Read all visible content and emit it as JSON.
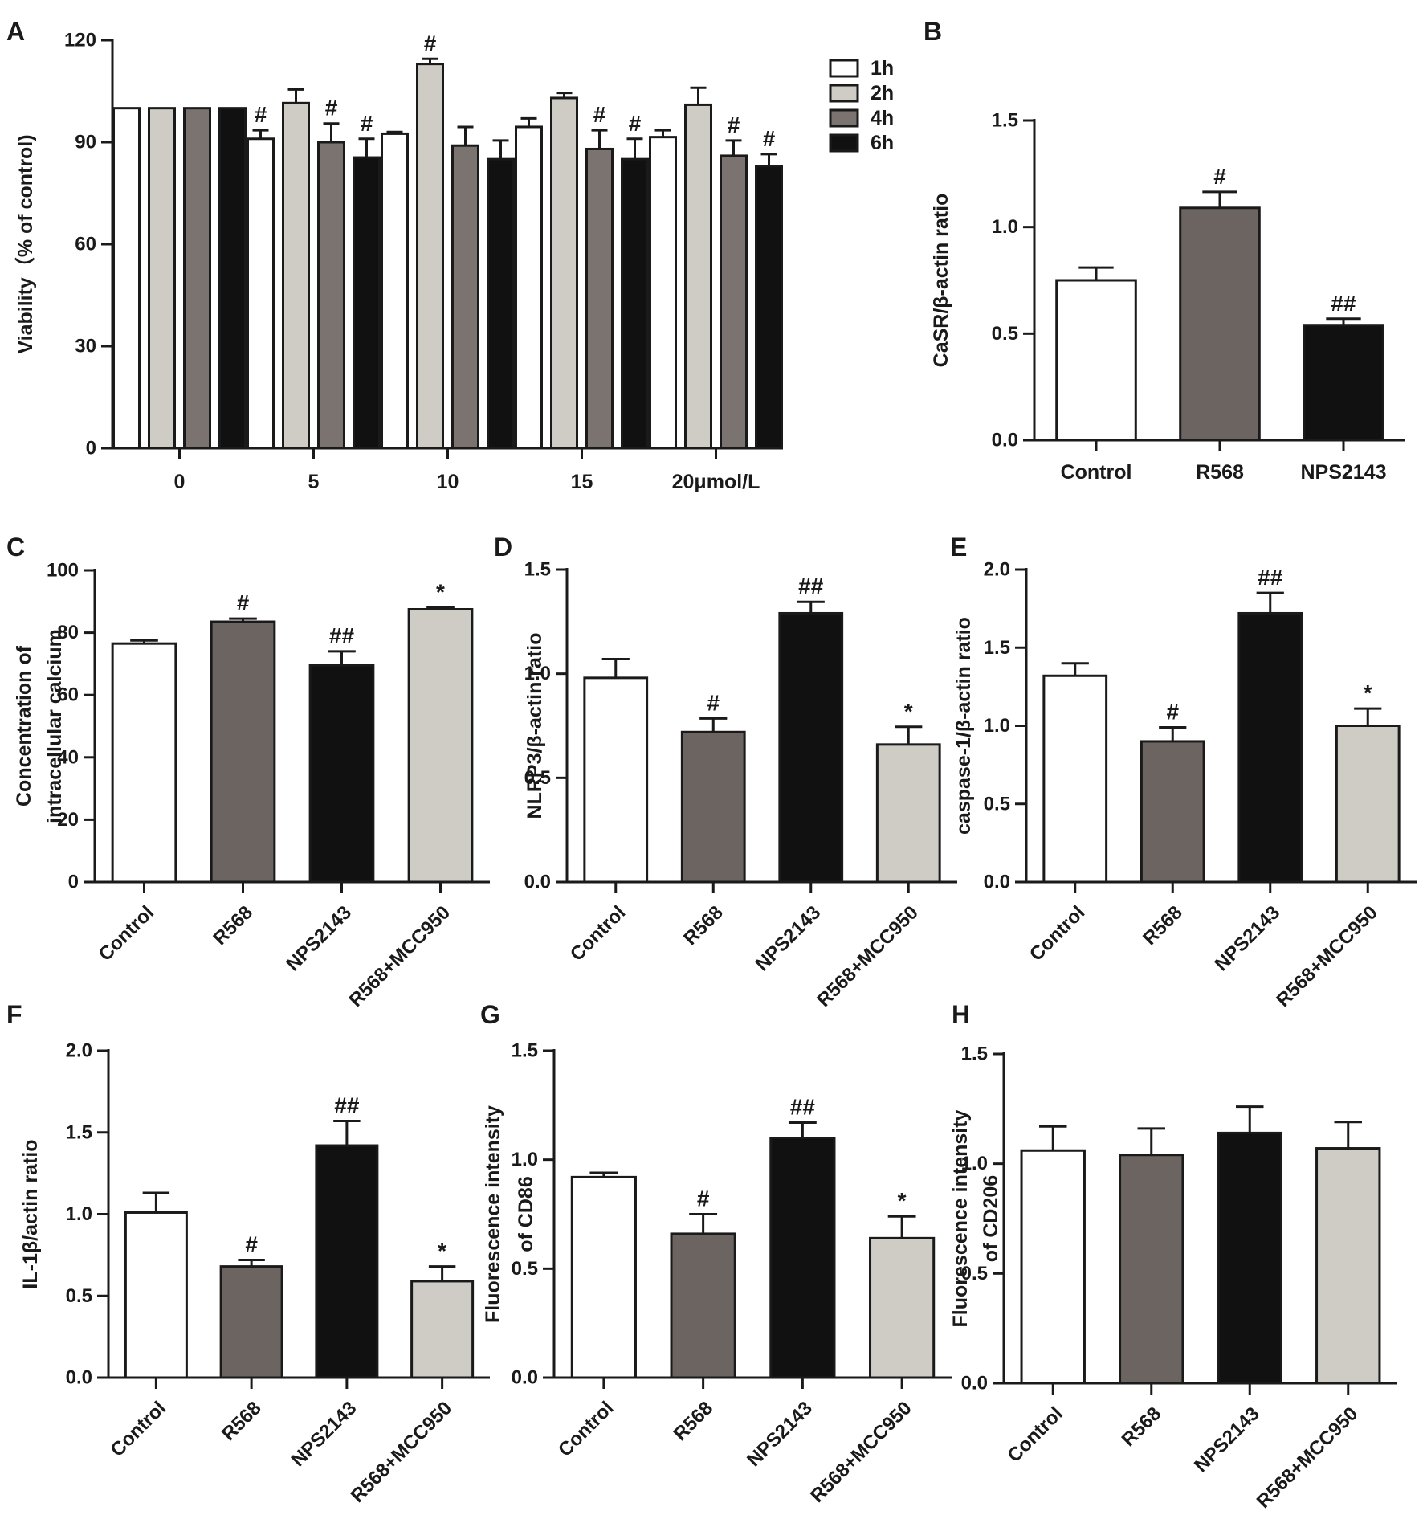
{
  "chart_data": [
    {
      "panel": "A",
      "type": "bar",
      "title": "",
      "xlabel": "",
      "ylabel": "Viability（% of control)",
      "ylim": [
        0,
        120
      ],
      "yticks": [
        "0",
        "30",
        "60",
        "90",
        "120"
      ],
      "categories": [
        "0",
        "5",
        "10",
        "15",
        "20μmol/L"
      ],
      "legend_position": "top-right",
      "series": [
        {
          "name": "1h",
          "color": "#ffffff",
          "values": [
            100,
            91,
            92.5,
            94.5,
            91.5
          ],
          "errors": [
            0,
            2.5,
            0.5,
            2.5,
            2
          ],
          "marks": [
            "",
            "#",
            "",
            "",
            ""
          ]
        },
        {
          "name": "2h",
          "color": "#cfccc6",
          "values": [
            100,
            101.5,
            113,
            103,
            101
          ],
          "errors": [
            0,
            4,
            1.5,
            1.5,
            5
          ],
          "marks": [
            "",
            "",
            "#",
            "",
            ""
          ]
        },
        {
          "name": "4h",
          "color": "#7a7370",
          "values": [
            100,
            90,
            89,
            88,
            86
          ],
          "errors": [
            0,
            5.5,
            5.5,
            5.5,
            4.5
          ],
          "marks": [
            "",
            "#",
            "",
            "#",
            "#"
          ]
        },
        {
          "name": "6h",
          "color": "#111111",
          "values": [
            100,
            85.5,
            85,
            85,
            83
          ],
          "errors": [
            0,
            5.5,
            5.5,
            6,
            3.5
          ],
          "marks": [
            "",
            "#",
            "",
            "#",
            "#"
          ]
        }
      ]
    },
    {
      "panel": "B",
      "type": "bar",
      "ylabel": "CaSR/β-actin ratio",
      "ylim": [
        0,
        1.5
      ],
      "yticks": [
        "0.0",
        "0.5",
        "1.0",
        "1.5"
      ],
      "categories": [
        "Control",
        "R568",
        "NPS2143"
      ],
      "values": [
        0.75,
        1.09,
        0.54
      ],
      "errors": [
        0.06,
        0.075,
        0.03
      ],
      "marks": [
        "",
        "#",
        "##"
      ],
      "colors": [
        "#ffffff",
        "#6b6461",
        "#111111"
      ]
    },
    {
      "panel": "C",
      "type": "bar",
      "ylabel": "Concentration of\nintracellular calcium",
      "ylim": [
        0,
        100
      ],
      "yticks": [
        "0",
        "20",
        "40",
        "60",
        "80",
        "100"
      ],
      "categories": [
        "Control",
        "R568",
        "NPS2143",
        "R568+MCC950"
      ],
      "values": [
        76.5,
        83.5,
        69.5,
        87.5
      ],
      "errors": [
        1,
        1,
        4.5,
        0.5
      ],
      "marks": [
        "",
        "#",
        "##",
        "*"
      ],
      "colors": [
        "#ffffff",
        "#6b6461",
        "#111111",
        "#cfccc6"
      ]
    },
    {
      "panel": "D",
      "type": "bar",
      "ylabel": "NLRP3/β-actin ratio",
      "ylim": [
        0,
        1.5
      ],
      "yticks": [
        "0.0",
        "0.5",
        "1.0",
        "1.5"
      ],
      "categories": [
        "Control",
        "R568",
        "NPS2143",
        "R568+MCC950"
      ],
      "values": [
        0.98,
        0.72,
        1.29,
        0.66
      ],
      "errors": [
        0.09,
        0.065,
        0.055,
        0.085
      ],
      "marks": [
        "",
        "#",
        "##",
        "*"
      ],
      "colors": [
        "#ffffff",
        "#6b6461",
        "#111111",
        "#cfccc6"
      ]
    },
    {
      "panel": "E",
      "type": "bar",
      "ylabel": "caspase-1/β-actin ratio",
      "ylim": [
        0,
        2.0
      ],
      "yticks": [
        "0.0",
        "0.5",
        "1.0",
        "1.5",
        "2.0"
      ],
      "categories": [
        "Control",
        "R568",
        "NPS2143",
        "R568+MCC950"
      ],
      "values": [
        1.32,
        0.9,
        1.72,
        1.0
      ],
      "errors": [
        0.08,
        0.09,
        0.13,
        0.11
      ],
      "marks": [
        "",
        "#",
        "##",
        "*"
      ],
      "colors": [
        "#ffffff",
        "#6b6461",
        "#111111",
        "#cfccc6"
      ]
    },
    {
      "panel": "F",
      "type": "bar",
      "ylabel": "IL-1β/actin ratio",
      "ylim": [
        0,
        2.0
      ],
      "yticks": [
        "0.0",
        "0.5",
        "1.0",
        "1.5",
        "2.0"
      ],
      "categories": [
        "Control",
        "R568",
        "NPS2143",
        "R568+MCC950"
      ],
      "values": [
        1.01,
        0.68,
        1.42,
        0.59
      ],
      "errors": [
        0.12,
        0.04,
        0.15,
        0.09
      ],
      "marks": [
        "",
        "#",
        "##",
        "*"
      ],
      "colors": [
        "#ffffff",
        "#6b6461",
        "#111111",
        "#cfccc6"
      ]
    },
    {
      "panel": "G",
      "type": "bar",
      "ylabel": "Fluorescence intensity\nof CD86",
      "ylim": [
        0,
        1.5
      ],
      "yticks": [
        "0.0",
        "0.5",
        "1.0",
        "1.5"
      ],
      "categories": [
        "Control",
        "R568",
        "NPS2143",
        "R568+MCC950"
      ],
      "values": [
        0.92,
        0.66,
        1.1,
        0.64
      ],
      "errors": [
        0.02,
        0.09,
        0.07,
        0.1
      ],
      "marks": [
        "",
        "#",
        "##",
        "*"
      ],
      "colors": [
        "#ffffff",
        "#6b6461",
        "#111111",
        "#cfccc6"
      ]
    },
    {
      "panel": "H",
      "type": "bar",
      "ylabel": "Fluorescence intensity\nof CD206",
      "ylim": [
        0,
        1.5
      ],
      "yticks": [
        "0.0",
        "0.5",
        "1.0",
        "1.5"
      ],
      "categories": [
        "Control",
        "R568",
        "NPS2143",
        "R568+MCC950"
      ],
      "values": [
        1.06,
        1.04,
        1.14,
        1.07
      ],
      "errors": [
        0.11,
        0.12,
        0.12,
        0.12
      ],
      "marks": [
        "",
        "",
        "",
        ""
      ],
      "colors": [
        "#ffffff",
        "#6b6461",
        "#111111",
        "#cfccc6"
      ]
    }
  ]
}
